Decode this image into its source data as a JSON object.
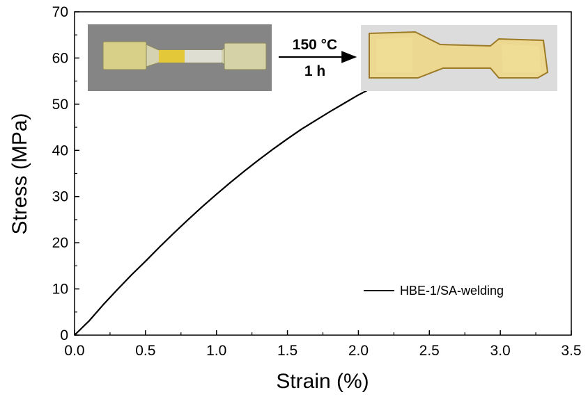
{
  "chart_data": {
    "type": "line",
    "xlabel": "Strain (%)",
    "ylabel": "Stress (MPa)",
    "xlim": [
      0.0,
      3.5
    ],
    "ylim": [
      0,
      70
    ],
    "x_ticks": [
      "0.0",
      "0.5",
      "1.0",
      "1.5",
      "2.0",
      "2.5",
      "3.0",
      "3.5"
    ],
    "y_ticks": [
      "0",
      "10",
      "20",
      "30",
      "40",
      "50",
      "60",
      "70"
    ],
    "grid": false,
    "legend_position": "bottom-right",
    "series": [
      {
        "name": "HBE-1/SA-welding",
        "color": "#000000",
        "x": [
          0.0,
          0.05,
          0.1,
          0.2,
          0.3,
          0.4,
          0.5,
          0.6,
          0.7,
          0.8,
          0.9,
          1.0,
          1.1,
          1.2,
          1.3,
          1.4,
          1.5,
          1.6,
          1.7,
          1.8,
          1.9,
          2.0,
          2.1,
          2.2,
          2.24
        ],
        "y": [
          0.0,
          1.5,
          3.0,
          6.5,
          9.8,
          13.0,
          16.0,
          19.1,
          22.1,
          25.0,
          27.8,
          30.5,
          33.1,
          35.6,
          38.0,
          40.3,
          42.5,
          44.6,
          46.5,
          48.4,
          50.2,
          52.0,
          53.6,
          54.9,
          55.2
        ]
      }
    ]
  },
  "inset": {
    "condition_temperature": "150 °C",
    "condition_time": "1 h",
    "arrow_icon": "right-arrow-icon",
    "photo_before": "welded-dogbone-specimen-photo",
    "photo_after": "healed-dogbone-specimen-photo"
  }
}
